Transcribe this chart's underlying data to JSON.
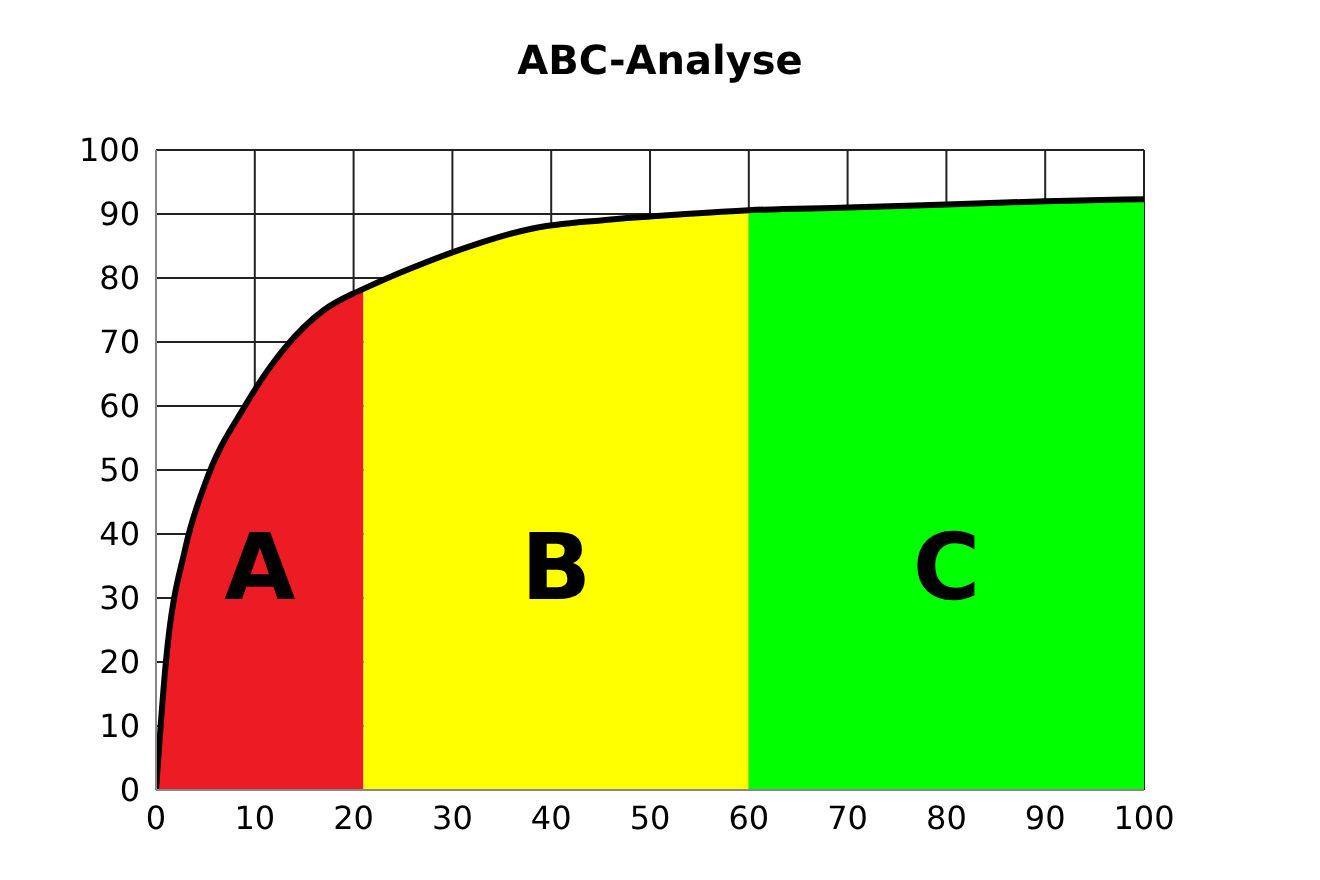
{
  "chart_data": {
    "type": "area",
    "title": "ABC-Analyse",
    "series": [
      {
        "color": "#ed1c24",
        "x": [
          0,
          1,
          3,
          5,
          9,
          13,
          17,
          20,
          21
        ],
        "values": [
          0,
          20,
          38,
          48,
          60,
          69,
          75,
          77.6,
          78.3
        ]
      },
      {
        "color": "#ffff00",
        "x": [
          21,
          25,
          30,
          38,
          45,
          50,
          60
        ],
        "values": [
          78.3,
          81,
          84,
          87.7,
          89,
          89.6,
          90.6
        ]
      },
      {
        "color": "#00ff00",
        "x": [
          60,
          70,
          80,
          90,
          100
        ],
        "values": [
          90.6,
          91,
          91.5,
          92,
          92.3
        ]
      },
      {
        "type": "line",
        "color": "#000000",
        "x": [
          0,
          1,
          3,
          5,
          9,
          13,
          17,
          20,
          21,
          25,
          30,
          38,
          45,
          50,
          60,
          70,
          80,
          90,
          100
        ],
        "values": [
          0,
          20,
          38,
          48,
          60,
          69,
          75,
          77.6,
          78.3,
          81,
          84,
          87.7,
          89,
          89.6,
          90.6,
          91,
          91.5,
          92,
          92.3
        ]
      }
    ],
    "annotations": [
      "A",
      "B",
      "C"
    ],
    "xlim": [
      0,
      100
    ],
    "xticks": [
      0,
      10,
      20,
      30,
      40,
      50,
      60,
      70,
      80,
      90,
      100
    ],
    "ylim": [
      0,
      100
    ],
    "yticks": [
      0,
      10,
      20,
      30,
      40,
      50,
      60,
      70,
      80,
      90,
      100
    ],
    "grid": true
  }
}
